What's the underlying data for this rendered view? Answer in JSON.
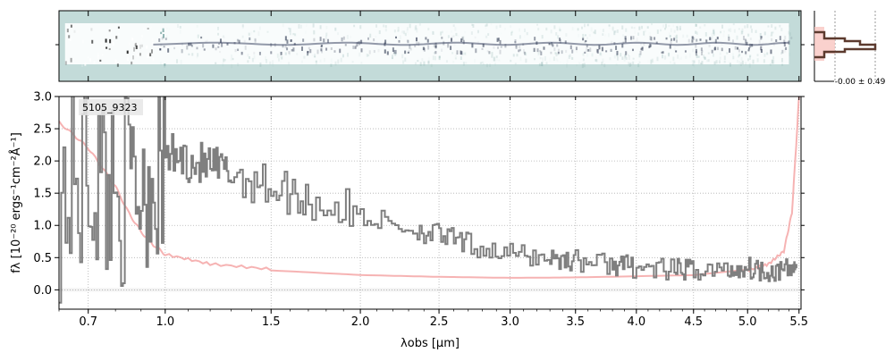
{
  "object_label": "5105_9323",
  "profile_label": "-0.00 ± 0.49",
  "colors": {
    "spectrum": "#7f7f7f",
    "error": "#f4a6a6",
    "error_fill": "#f9c5c0",
    "profile": "#5c3a2e",
    "twod_bg": "#c3dbd9",
    "grid": "#b0b0b0"
  },
  "chart_data": [
    {
      "type": "heatmap",
      "panel": "2D spectrum",
      "description_values": "signal concentrated in central rows, strongest at short wavelengths",
      "x_ticks": [
        0.7,
        1.0,
        1.5,
        2.0,
        2.5,
        3.0,
        3.5,
        4.0,
        4.5,
        5.0,
        5.5
      ],
      "grid": false
    },
    {
      "type": "line",
      "panel": "1D spectrum",
      "xlabel": "λobs [μm]",
      "ylabel": "fλ [10⁻²⁰ ergs⁻¹cm⁻²Å⁻¹]",
      "xlim": [
        0.6,
        5.52
      ],
      "ylim": [
        -0.3,
        3.0
      ],
      "scale": "sqrt-like wavelength axis",
      "grid": true,
      "x_ticks": [
        0.7,
        1.0,
        1.5,
        2.0,
        2.5,
        3.0,
        3.5,
        4.0,
        4.5,
        5.0,
        5.5
      ],
      "y_ticks": [
        0.0,
        0.5,
        1.0,
        1.5,
        2.0,
        2.5,
        3.0
      ],
      "series": [
        {
          "role": "flux",
          "x": [
            0.6,
            0.7,
            0.8,
            0.9,
            1.0,
            1.1,
            1.2,
            1.3,
            1.5,
            1.7,
            2.0,
            2.3,
            2.5,
            2.7,
            3.0,
            3.3,
            3.5,
            3.8,
            4.0,
            4.3,
            4.5,
            4.8,
            5.0,
            5.2,
            5.4,
            5.48
          ],
          "y": [
            1.4,
            1.8,
            1.6,
            1.7,
            2.1,
            2.0,
            1.9,
            1.8,
            1.6,
            1.4,
            1.15,
            0.95,
            0.85,
            0.7,
            0.55,
            0.5,
            0.45,
            0.4,
            0.35,
            0.3,
            0.32,
            0.3,
            0.35,
            0.3,
            0.3,
            0.4
          ]
        },
        {
          "role": "error",
          "x": [
            0.6,
            0.7,
            0.8,
            0.85,
            0.9,
            0.95,
            1.0,
            1.2,
            1.5,
            2.0,
            2.5,
            3.0,
            3.5,
            4.0,
            4.5,
            5.0,
            5.2,
            5.35,
            5.43,
            5.47,
            5.5
          ],
          "y": [
            2.6,
            2.2,
            1.6,
            1.2,
            0.9,
            0.7,
            0.55,
            0.4,
            0.32,
            0.25,
            0.22,
            0.2,
            0.2,
            0.21,
            0.22,
            0.3,
            0.4,
            0.6,
            1.2,
            2.2,
            3.0
          ]
        }
      ]
    },
    {
      "type": "line",
      "panel": "spatial profile",
      "grid": false
    }
  ]
}
